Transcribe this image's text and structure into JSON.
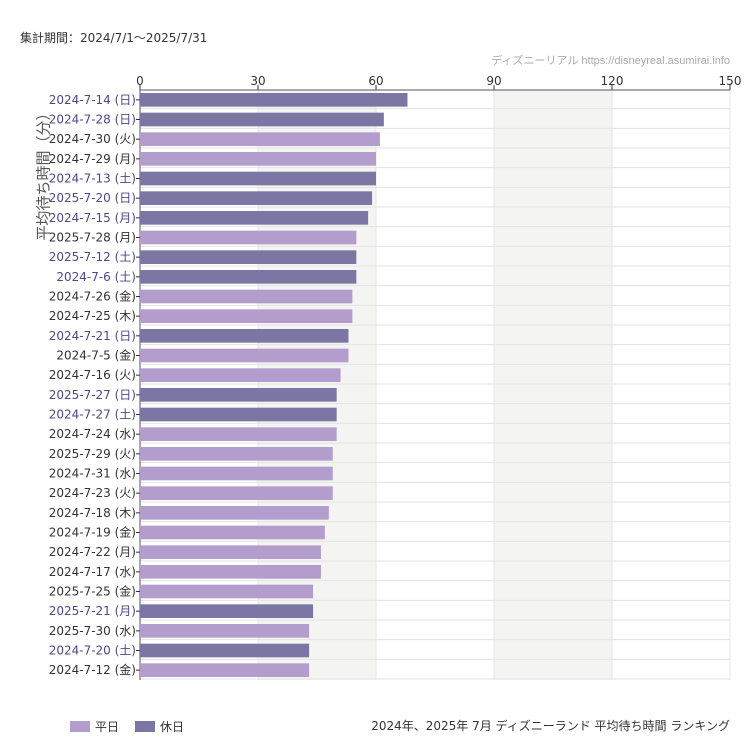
{
  "header": {
    "period": "集計期間：2024/7/1～2025/7/31",
    "source": "ディズニーリアル https://disneyreal.asumirai.info"
  },
  "caption": "2024年、2025年 7月 ディズニーランド 平均待ち時間 ランキング",
  "colors": {
    "weekday": "#b39dcc",
    "holiday": "#7b76a3",
    "weekday_label": "#333333",
    "holiday_label": "#4a4a8a",
    "band": "#f4f5f3"
  },
  "legend": [
    {
      "name": "平日",
      "color": "#b39dcc"
    },
    {
      "name": "休日",
      "color": "#7b76a3"
    }
  ],
  "chart_data": {
    "type": "bar",
    "orientation": "horizontal",
    "ylabel": "平均待ち時間（分）",
    "xlim": [
      0,
      150
    ],
    "xticks": [
      0,
      30,
      60,
      90,
      120,
      150
    ],
    "x_axis_position": "top",
    "grid": true,
    "legend_position": "bottom-left",
    "categories": [
      "2024-7-14 (日)",
      "2024-7-28 (日)",
      "2024-7-30 (火)",
      "2024-7-29 (月)",
      "2024-7-13 (土)",
      "2025-7-20 (日)",
      "2024-7-15 (月)",
      "2025-7-28 (月)",
      "2025-7-12 (土)",
      "2024-7-6 (土)",
      "2024-7-26 (金)",
      "2024-7-25 (木)",
      "2024-7-21 (日)",
      "2024-7-5 (金)",
      "2024-7-16 (火)",
      "2025-7-27 (日)",
      "2024-7-27 (土)",
      "2024-7-24 (水)",
      "2025-7-29 (火)",
      "2024-7-31 (水)",
      "2024-7-23 (火)",
      "2024-7-18 (木)",
      "2024-7-19 (金)",
      "2024-7-22 (月)",
      "2024-7-17 (水)",
      "2025-7-25 (金)",
      "2025-7-21 (月)",
      "2025-7-30 (水)",
      "2024-7-20 (土)",
      "2024-7-12 (金)"
    ],
    "values": [
      68,
      62,
      61,
      60,
      60,
      59,
      58,
      55,
      55,
      55,
      54,
      54,
      53,
      53,
      51,
      50,
      50,
      50,
      49,
      49,
      49,
      48,
      47,
      46,
      46,
      44,
      44,
      43,
      43,
      43
    ],
    "day_type": [
      "休日",
      "休日",
      "平日",
      "平日",
      "休日",
      "休日",
      "休日",
      "平日",
      "休日",
      "休日",
      "平日",
      "平日",
      "休日",
      "平日",
      "平日",
      "休日",
      "休日",
      "平日",
      "平日",
      "平日",
      "平日",
      "平日",
      "平日",
      "平日",
      "平日",
      "平日",
      "休日",
      "平日",
      "休日",
      "平日"
    ]
  }
}
